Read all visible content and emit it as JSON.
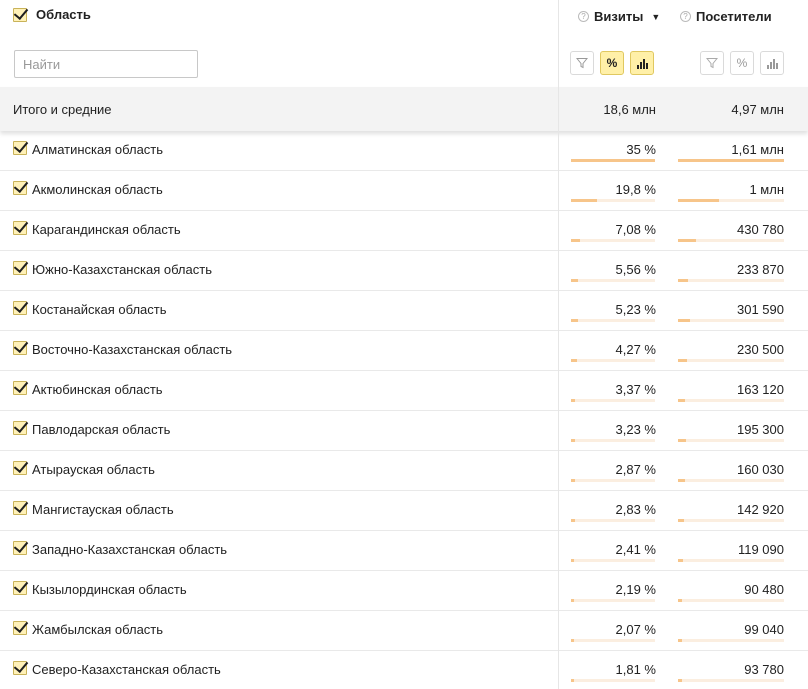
{
  "header": {
    "dimension_label": "Область",
    "search_placeholder": "Найти",
    "metrics": [
      {
        "label": "Визиты",
        "sort_indicator": "▼"
      },
      {
        "label": "Посетители"
      }
    ],
    "tools": {
      "filter_icon": "filter-icon",
      "percent_label": "%",
      "bars_icon": "bar-chart-icon"
    }
  },
  "totals": {
    "label": "Итого и средние",
    "visits": "18,6 млн",
    "visitors": "4,97 млн"
  },
  "rows": [
    {
      "name": "Алматинская область",
      "visits": "35 %",
      "visitors": "1,61 млн",
      "visits_share": 0.35,
      "visitors_share": 0.324
    },
    {
      "name": "Акмолинская область",
      "visits": "19,8 %",
      "visitors": "1 млн",
      "visits_share": 0.198,
      "visitors_share": 0.201
    },
    {
      "name": "Карагандинская область",
      "visits": "7,08 %",
      "visitors": "430 780",
      "visits_share": 0.0708,
      "visitors_share": 0.0867
    },
    {
      "name": "Южно-Казахстанская область",
      "visits": "5,56 %",
      "visitors": "233 870",
      "visits_share": 0.0556,
      "visitors_share": 0.047
    },
    {
      "name": "Костанайская область",
      "visits": "5,23 %",
      "visitors": "301 590",
      "visits_share": 0.0523,
      "visitors_share": 0.0607
    },
    {
      "name": "Восточно-Казахстанская область",
      "visits": "4,27 %",
      "visitors": "230 500",
      "visits_share": 0.0427,
      "visitors_share": 0.0464
    },
    {
      "name": "Актюбинская область",
      "visits": "3,37 %",
      "visitors": "163 120",
      "visits_share": 0.0337,
      "visitors_share": 0.0328
    },
    {
      "name": "Павлодарская область",
      "visits": "3,23 %",
      "visitors": "195 300",
      "visits_share": 0.0323,
      "visitors_share": 0.0393
    },
    {
      "name": "Атырауская область",
      "visits": "2,87 %",
      "visitors": "160 030",
      "visits_share": 0.0287,
      "visitors_share": 0.0322
    },
    {
      "name": "Мангистауская область",
      "visits": "2,83 %",
      "visitors": "142 920",
      "visits_share": 0.0283,
      "visitors_share": 0.0288
    },
    {
      "name": "Западно-Казахстанская область",
      "visits": "2,41 %",
      "visitors": "119 090",
      "visits_share": 0.0241,
      "visitors_share": 0.024
    },
    {
      "name": "Кызылординская область",
      "visits": "2,19 %",
      "visitors": "90 480",
      "visits_share": 0.0219,
      "visitors_share": 0.0182
    },
    {
      "name": "Жамбылская область",
      "visits": "2,07 %",
      "visitors": "99 040",
      "visits_share": 0.0207,
      "visitors_share": 0.0199
    },
    {
      "name": "Северо-Казахстанская область",
      "visits": "1,81 %",
      "visitors": "93 780",
      "visits_share": 0.0181,
      "visitors_share": 0.0189
    }
  ],
  "colors": {
    "bar_fill": "#f7c58a",
    "bar_track": "#fbeee0",
    "active_tool": "#fff0a8",
    "totals_bg": "#f3f3f3"
  }
}
